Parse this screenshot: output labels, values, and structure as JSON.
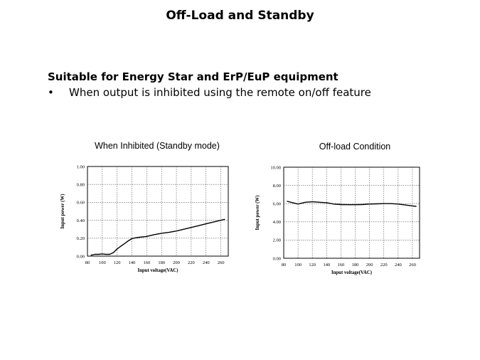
{
  "slide": {
    "title": "Off-Load and Standby",
    "heading": "Suitable for Energy Star and ErP/EuP equipment",
    "bullet_mark": "•",
    "bullet_text": "When output is inhibited using the remote on/off feature"
  },
  "chart_data": [
    {
      "type": "line",
      "title": "When Inhibited (Standby mode)",
      "xlabel": "Input voltage(VAC)",
      "ylabel": "Input power (W)",
      "xlim": [
        80,
        270
      ],
      "ylim": [
        0,
        1
      ],
      "xticks": [
        "80",
        "100",
        "120",
        "140",
        "160",
        "180",
        "200",
        "220",
        "240",
        "260"
      ],
      "yticks": [
        "0.00",
        "0.20",
        "0.40",
        "0.60",
        "0.80",
        "1.00"
      ],
      "grid": true,
      "series": [
        {
          "x": [
            85,
            90,
            95,
            100,
            105,
            110,
            115,
            120,
            125,
            130,
            135,
            140,
            145,
            150,
            160,
            170,
            180,
            190,
            200,
            210,
            220,
            230,
            240,
            250,
            260,
            265
          ],
          "y": [
            0.01,
            0.02,
            0.02,
            0.025,
            0.02,
            0.02,
            0.04,
            0.08,
            0.11,
            0.14,
            0.17,
            0.195,
            0.205,
            0.21,
            0.22,
            0.24,
            0.255,
            0.265,
            0.28,
            0.3,
            0.32,
            0.34,
            0.36,
            0.38,
            0.4,
            0.41
          ]
        }
      ]
    },
    {
      "type": "line",
      "title": "Off-load Condition",
      "xlabel": "Input voltage(VAC)",
      "ylabel": "Input power (W)",
      "xlim": [
        80,
        270
      ],
      "ylim": [
        0,
        10
      ],
      "xticks": [
        "80",
        "100",
        "120",
        "140",
        "160",
        "180",
        "200",
        "220",
        "240",
        "260"
      ],
      "yticks": [
        "0.00",
        "2.00",
        "4.00",
        "6.00",
        "8.00",
        "10.00"
      ],
      "grid": true,
      "series": [
        {
          "x": [
            85,
            95,
            100,
            110,
            120,
            130,
            140,
            150,
            160,
            170,
            180,
            190,
            200,
            210,
            220,
            230,
            240,
            250,
            260,
            265
          ],
          "y": [
            6.25,
            6.05,
            5.95,
            6.15,
            6.2,
            6.15,
            6.1,
            5.95,
            5.9,
            5.88,
            5.88,
            5.9,
            5.95,
            5.98,
            6.0,
            6.0,
            5.95,
            5.85,
            5.75,
            5.7
          ]
        }
      ]
    }
  ]
}
